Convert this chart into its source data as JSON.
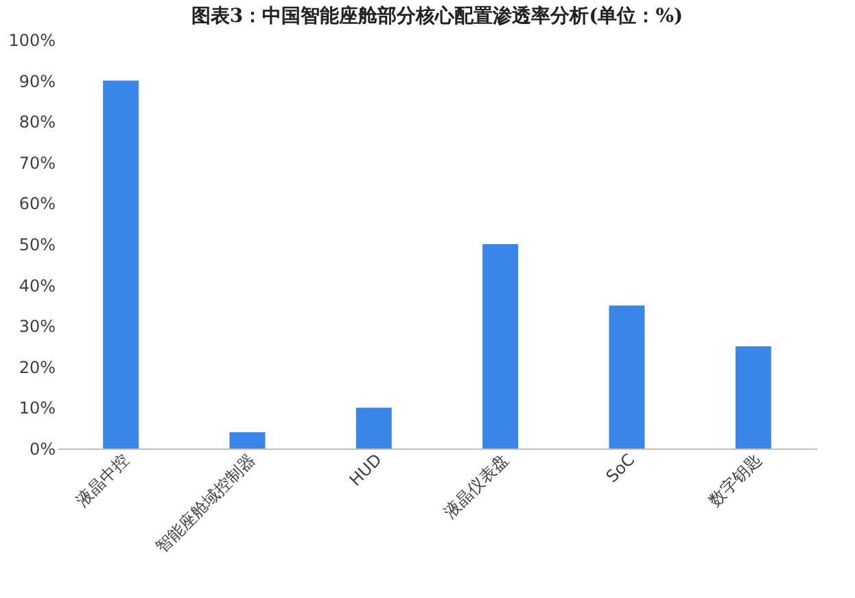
{
  "chart_data": {
    "type": "bar",
    "title": "图表3：中国智能座舱部分核心配置渗透率分析(单位：%)",
    "categories": [
      "液晶中控",
      "智能座舱域控制器",
      "HUD",
      "液晶仪表盘",
      "SoC",
      "数字钥匙"
    ],
    "values": [
      90,
      4,
      10,
      50,
      35,
      25
    ],
    "color": "#3a86e8",
    "ylim": [
      0,
      100
    ],
    "yticks": [
      {
        "value": 0,
        "label": "0%"
      },
      {
        "value": 10,
        "label": "10%"
      },
      {
        "value": 20,
        "label": "20%"
      },
      {
        "value": 30,
        "label": "30%"
      },
      {
        "value": 40,
        "label": "40%"
      },
      {
        "value": 50,
        "label": "50%"
      },
      {
        "value": 60,
        "label": "60%"
      },
      {
        "value": 70,
        "label": "70%"
      },
      {
        "value": 80,
        "label": "80%"
      },
      {
        "value": 90,
        "label": "90%"
      },
      {
        "value": 100,
        "label": "100%"
      }
    ],
    "grid": false
  }
}
